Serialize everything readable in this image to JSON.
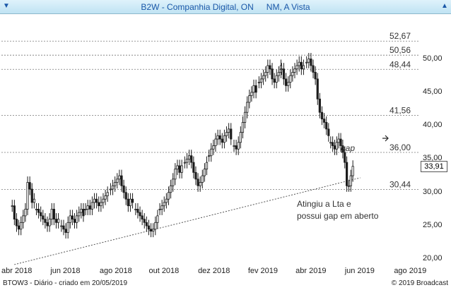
{
  "header": {
    "title": "B2W - Companhia Digital, ON",
    "subtitle": "NM, A Vista",
    "left_icon": "down-triangle-icon",
    "right_icon": "up-triangle-icon"
  },
  "footer": {
    "left": "BTOW3 - Diário - criado em 20/05/2019",
    "right": "© 2019 Broadcast"
  },
  "chart_data": {
    "type": "candlestick",
    "ylim": [
      19.3,
      56.5
    ],
    "yticks": [
      "50,00",
      "45,00",
      "40,00",
      "35,00",
      "30,00",
      "25,00",
      "20,00"
    ],
    "ytick_values": [
      50,
      45,
      40,
      35,
      30,
      25,
      20
    ],
    "xticks": [
      "abr 2018",
      "jun 2018",
      "ago 2018",
      "out 2018",
      "dez 2018",
      "fev 2019",
      "abr 2019",
      "jun 2019",
      "ago 2019"
    ],
    "last_price": "33,91",
    "levels": [
      {
        "label": "52,67",
        "value": 52.67
      },
      {
        "label": "50,56",
        "value": 50.56
      },
      {
        "label": "48,44",
        "value": 48.44
      },
      {
        "label": "41,56",
        "value": 41.56
      },
      {
        "label": "36,00",
        "value": 36.0
      },
      {
        "label": "30,44",
        "value": 30.44
      }
    ],
    "trendline": {
      "from": {
        "date": "2018-04-05",
        "value": 19.2
      },
      "to": {
        "date": "2019-06-08",
        "value": 32.2
      }
    },
    "annotations": {
      "gap": "gap",
      "note_line1": "Atingiu a Lta e",
      "note_line2": "possui gap em aberto"
    },
    "colors": {
      "candle": "#1c1c1c",
      "level": "#777777",
      "trend": "#555555",
      "accent": "#1a57a8"
    },
    "series": [
      {
        "x": "2018-04",
        "values": [
          28,
          26,
          25,
          24.5,
          25.5,
          26.5,
          27.5,
          31.5,
          30.5,
          28.5,
          29
        ]
      },
      {
        "x": "2018-05",
        "values": [
          27.5,
          27,
          26.5,
          26,
          25.5,
          25,
          26,
          27.5,
          26,
          25.5,
          26
        ]
      },
      {
        "x": "2018-06",
        "values": [
          25,
          24.5,
          24,
          25.5,
          26.5,
          26,
          25.5,
          26.5,
          27,
          27.5,
          26.5
        ]
      },
      {
        "x": "2018-07",
        "values": [
          27.5,
          28,
          27.5,
          28.5,
          29,
          28.5,
          28,
          28.5,
          29,
          29.5,
          30
        ]
      },
      {
        "x": "2018-08",
        "values": [
          30.5,
          31,
          31.5,
          32,
          32.5,
          31,
          30,
          29,
          28,
          29,
          28.5
        ]
      },
      {
        "x": "2018-09",
        "values": [
          27.5,
          27,
          26.5,
          26,
          25.5,
          25,
          24.5,
          24.2,
          24.5,
          25.5,
          26.5
        ]
      },
      {
        "x": "2018-10",
        "values": [
          27.5,
          28,
          28.5,
          29,
          30,
          31,
          32,
          33.5,
          34,
          33,
          34
        ]
      },
      {
        "x": "2018-11",
        "values": [
          34.5,
          35,
          35.5,
          34.5,
          33,
          32,
          31,
          31.5,
          32.5,
          33.5,
          34.5
        ]
      },
      {
        "x": "2018-12",
        "values": [
          35.5,
          36.5,
          37,
          38,
          38.5,
          38,
          37.5,
          38.5,
          39,
          39.5,
          38
        ]
      },
      {
        "x": "2019-01",
        "values": [
          37,
          36.5,
          37.5,
          39,
          40.5,
          42,
          43.5,
          44.5,
          45,
          46,
          45
        ]
      },
      {
        "x": "2019-02",
        "values": [
          46.5,
          47,
          47.5,
          48,
          49,
          48.5,
          47,
          46.5,
          47.5,
          48,
          49
        ]
      },
      {
        "x": "2019-03",
        "values": [
          48.5,
          47,
          46,
          46.5,
          47.5,
          48,
          48.5,
          49,
          49.5,
          48.5,
          49
        ]
      },
      {
        "x": "2019-04",
        "values": [
          49.5,
          50,
          49,
          48,
          47,
          44,
          42,
          41,
          40.5,
          39.5,
          38.5
        ]
      },
      {
        "x": "2019-05",
        "values": [
          37.5,
          37,
          36.5,
          37.5,
          38,
          37,
          36,
          34.5,
          31,
          31,
          32.5,
          33.91
        ]
      }
    ]
  }
}
